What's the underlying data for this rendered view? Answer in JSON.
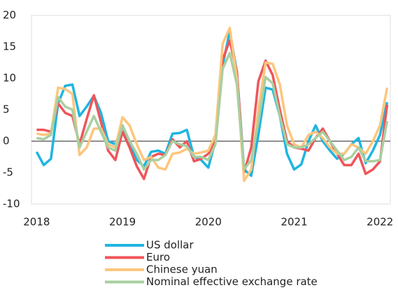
{
  "chart_data": {
    "type": "line",
    "x": [
      2018,
      2018.083,
      2018.167,
      2018.25,
      2018.333,
      2018.417,
      2018.5,
      2018.583,
      2018.667,
      2018.75,
      2018.833,
      2018.917,
      2019,
      2019.083,
      2019.167,
      2019.25,
      2019.333,
      2019.417,
      2019.5,
      2019.583,
      2019.667,
      2019.75,
      2019.833,
      2019.917,
      2020,
      2020.083,
      2020.167,
      2020.25,
      2020.333,
      2020.417,
      2020.5,
      2020.583,
      2020.667,
      2020.75,
      2020.833,
      2020.917,
      2021,
      2021.083,
      2021.167,
      2021.25,
      2021.333,
      2021.417,
      2021.5,
      2021.583,
      2021.667,
      2021.75,
      2021.833,
      2021.917,
      2022,
      2022.083
    ],
    "series": [
      {
        "name": "US dollar",
        "color": "#1fb5e0",
        "values": [
          -1.7,
          -3.8,
          -2.8,
          6,
          8.8,
          9,
          4,
          5.5,
          7.2,
          4.5,
          0,
          -0.5,
          2.5,
          -0.5,
          -3,
          -4,
          -1.7,
          -1.5,
          -2,
          1.2,
          1.3,
          1.8,
          -2.5,
          -3,
          -4.2,
          0,
          12,
          17.5,
          11,
          -4.5,
          -5.5,
          1,
          8.5,
          8.2,
          4,
          -2,
          -4.5,
          -3.7,
          0,
          2.5,
          0,
          -1.5,
          -2.8,
          -2,
          -0.5,
          0.5,
          -3.5,
          -1.5,
          1,
          6.2
        ]
      },
      {
        "name": "Euro",
        "color": "#f0555a",
        "values": [
          1.8,
          1.8,
          1.5,
          6,
          4.5,
          4,
          -0.5,
          3.5,
          7.3,
          3,
          -1.5,
          -3,
          1.5,
          -1,
          -4,
          -6,
          -2.5,
          -2,
          -2.2,
          0.3,
          -1,
          0,
          -3.2,
          -2.8,
          -2,
          0,
          13,
          16,
          11,
          -5,
          -1,
          9.5,
          12.8,
          10.5,
          5,
          0,
          -1,
          -1.2,
          -1.5,
          0.5,
          2,
          0,
          -2,
          -3.8,
          -3.8,
          -2,
          -5.2,
          -4.5,
          -3.2,
          5.8
        ]
      },
      {
        "name": "Chinese yuan",
        "color": "#fdc67d",
        "values": [
          1.2,
          1,
          1.2,
          8.5,
          8.3,
          7.5,
          -2.2,
          -1,
          2,
          2,
          -0.5,
          -1,
          3.8,
          2.5,
          -0.5,
          -3,
          -2.5,
          -4.2,
          -4.5,
          -2,
          -1.8,
          -1.2,
          -2,
          -1.8,
          -1.5,
          1,
          15.5,
          18,
          10,
          -6.3,
          -4.5,
          5,
          12.5,
          12.3,
          9,
          2.5,
          -0.5,
          -1,
          1,
          1.5,
          0.5,
          -1,
          -2,
          -2,
          -0.5,
          -1,
          -2,
          0,
          2.5,
          8.5
        ]
      },
      {
        "name": "Nominal effective exchange rate",
        "color": "#a9cfa0",
        "values": [
          0.5,
          0.3,
          1,
          7,
          5.5,
          5,
          -1,
          1.5,
          4,
          1.5,
          -1,
          -1.5,
          2.5,
          0,
          -2,
          -4.5,
          -3,
          -3,
          -2.2,
          0,
          -0.5,
          -0.8,
          -2.5,
          -2.5,
          -3,
          -0.5,
          11.5,
          14,
          9,
          -4.5,
          -3,
          3,
          10.2,
          9.2,
          4,
          -0.5,
          -1,
          -1,
          -0.5,
          0.5,
          1.5,
          0,
          -1.5,
          -3,
          -2.5,
          -1,
          -3.2,
          -3.2,
          -3,
          3.2
        ]
      }
    ],
    "xlim": [
      2017.94,
      2022.12
    ],
    "xticks": [
      2018,
      2019,
      2020,
      2021,
      2022
    ],
    "ylim": [
      -10,
      20
    ],
    "yticks": [
      -10,
      -5,
      0,
      5,
      10,
      15,
      20
    ]
  }
}
